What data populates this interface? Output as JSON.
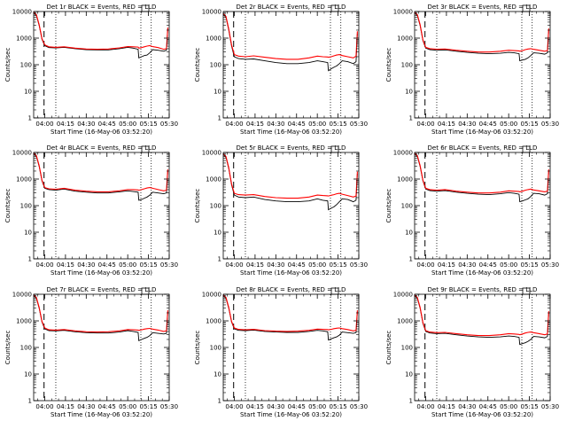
{
  "figure": {
    "xlabel": "Start Time (16-May-06 03:52:20)",
    "ylabel": "Counts/sec"
  },
  "chart_data": [
    {
      "type": "line",
      "title": "Det 1r BLACK = Events, RED = LLD",
      "xlabel": "Start Time (16-May-06 03:52:20)",
      "ylabel": "Counts/sec",
      "yscale": "log",
      "ylim": [
        1,
        10000
      ],
      "xlim_minutes": [
        0,
        98
      ],
      "x_tick_labels": [
        "04:00",
        "04:15",
        "04:30",
        "04:45",
        "05:00",
        "05:15",
        "05:30"
      ],
      "y_tick_labels": [
        "1",
        "10",
        "100",
        "1000",
        "10000"
      ],
      "x_minutes": [
        0,
        2,
        4,
        6,
        8,
        11,
        16,
        22,
        30,
        38,
        46,
        54,
        62,
        68,
        72,
        75.5,
        76,
        78,
        80,
        82,
        84,
        86,
        90,
        94,
        96,
        97
      ],
      "series": [
        {
          "name": "Events",
          "color": "#000000",
          "values": [
            9000,
            7000,
            3000,
            900,
            520,
            440,
            430,
            450,
            400,
            370,
            360,
            360,
            400,
            450,
            420,
            380,
            180,
            200,
            220,
            230,
            280,
            370,
            350,
            320,
            350,
            2200
          ]
        },
        {
          "name": "LLD",
          "color": "#ff0000",
          "values": [
            9500,
            7500,
            3200,
            950,
            560,
            470,
            450,
            470,
            420,
            390,
            380,
            390,
            430,
            480,
            470,
            460,
            420,
            440,
            470,
            500,
            520,
            480,
            440,
            380,
            400,
            2500
          ]
        }
      ]
    },
    {
      "type": "line",
      "title": "Det 2r BLACK = Events, RED = LLD",
      "xlabel": "Start Time (16-May-06 03:52:20)",
      "ylabel": "Counts/sec",
      "yscale": "log",
      "ylim": [
        1,
        10000
      ],
      "xlim_minutes": [
        0,
        98
      ],
      "x_tick_labels": [
        "04:00",
        "04:15",
        "04:30",
        "04:45",
        "05:00",
        "05:15",
        "05:30"
      ],
      "y_tick_labels": [
        "1",
        "10",
        "100",
        "1000",
        "10000"
      ],
      "x_minutes": [
        0,
        2,
        4,
        6,
        8,
        11,
        16,
        22,
        30,
        38,
        46,
        54,
        62,
        68,
        72,
        75.5,
        76,
        78,
        80,
        82,
        84,
        86,
        90,
        94,
        96,
        97
      ],
      "series": [
        {
          "name": "Events",
          "color": "#000000",
          "values": [
            8000,
            6000,
            2000,
            500,
            200,
            170,
            160,
            165,
            140,
            120,
            110,
            110,
            120,
            140,
            130,
            120,
            60,
            70,
            80,
            90,
            110,
            140,
            130,
            110,
            130,
            1500
          ]
        },
        {
          "name": "LLD",
          "color": "#ff0000",
          "values": [
            8500,
            6500,
            2200,
            550,
            240,
            210,
            200,
            215,
            190,
            170,
            160,
            160,
            180,
            210,
            200,
            195,
            190,
            200,
            215,
            230,
            240,
            220,
            200,
            180,
            210,
            1800
          ]
        }
      ]
    },
    {
      "type": "line",
      "title": "Det 3r BLACK = Events, RED = LLD",
      "xlabel": "Start Time (16-May-06 03:52:20)",
      "ylabel": "Counts/sec",
      "yscale": "log",
      "ylim": [
        1,
        10000
      ],
      "xlim_minutes": [
        0,
        98
      ],
      "x_tick_labels": [
        "04:00",
        "04:15",
        "04:30",
        "04:45",
        "05:00",
        "05:15",
        "05:30"
      ],
      "y_tick_labels": [
        "1",
        "10",
        "100",
        "1000",
        "10000"
      ],
      "x_minutes": [
        0,
        2,
        4,
        6,
        8,
        11,
        16,
        22,
        30,
        38,
        46,
        54,
        62,
        68,
        72,
        75.5,
        76,
        78,
        80,
        82,
        84,
        86,
        90,
        94,
        96,
        97
      ],
      "series": [
        {
          "name": "Events",
          "color": "#000000",
          "values": [
            9000,
            7000,
            3000,
            800,
            420,
            370,
            350,
            360,
            320,
            290,
            270,
            260,
            270,
            290,
            280,
            260,
            140,
            150,
            160,
            180,
            220,
            280,
            270,
            250,
            280,
            2000
          ]
        },
        {
          "name": "LLD",
          "color": "#ff0000",
          "values": [
            9500,
            7500,
            3200,
            850,
            450,
            400,
            380,
            390,
            350,
            320,
            300,
            300,
            320,
            350,
            340,
            330,
            320,
            340,
            370,
            390,
            400,
            380,
            350,
            320,
            340,
            2300
          ]
        }
      ]
    },
    {
      "type": "line",
      "title": "Det 4r BLACK = Events, RED = LLD",
      "xlabel": "Start Time (16-May-06 03:52:20)",
      "ylabel": "Counts/sec",
      "yscale": "log",
      "ylim": [
        1,
        10000
      ],
      "xlim_minutes": [
        0,
        98
      ],
      "x_tick_labels": [
        "04:00",
        "04:15",
        "04:30",
        "04:45",
        "05:00",
        "05:15",
        "05:30"
      ],
      "y_tick_labels": [
        "1",
        "10",
        "100",
        "1000",
        "10000"
      ],
      "x_minutes": [
        0,
        2,
        4,
        6,
        8,
        11,
        16,
        22,
        30,
        38,
        46,
        54,
        62,
        68,
        72,
        75.5,
        76,
        78,
        80,
        82,
        84,
        86,
        90,
        94,
        96,
        97
      ],
      "series": [
        {
          "name": "Events",
          "color": "#000000",
          "values": [
            9000,
            7000,
            3000,
            850,
            450,
            400,
            380,
            420,
            350,
            320,
            300,
            300,
            330,
            360,
            340,
            320,
            160,
            170,
            190,
            210,
            250,
            320,
            300,
            280,
            300,
            2000
          ]
        },
        {
          "name": "LLD",
          "color": "#ff0000",
          "values": [
            9500,
            7500,
            3200,
            900,
            480,
            430,
            410,
            450,
            380,
            350,
            330,
            330,
            360,
            400,
            400,
            390,
            380,
            400,
            430,
            460,
            480,
            450,
            400,
            360,
            380,
            2300
          ]
        }
      ]
    },
    {
      "type": "line",
      "title": "Det 5r BLACK = Events, RED = LLD",
      "xlabel": "Start Time (16-May-06 03:52:20)",
      "ylabel": "Counts/sec",
      "yscale": "log",
      "ylim": [
        1,
        10000
      ],
      "xlim_minutes": [
        0,
        98
      ],
      "x_tick_labels": [
        "04:00",
        "04:15",
        "04:30",
        "04:45",
        "05:00",
        "05:15",
        "05:30"
      ],
      "y_tick_labels": [
        "1",
        "10",
        "100",
        "1000",
        "10000"
      ],
      "x_minutes": [
        0,
        2,
        4,
        6,
        8,
        11,
        16,
        22,
        30,
        38,
        46,
        54,
        62,
        68,
        72,
        75.5,
        76,
        78,
        80,
        82,
        84,
        86,
        90,
        94,
        96,
        97
      ],
      "series": [
        {
          "name": "Events",
          "color": "#000000",
          "values": [
            8500,
            6500,
            2500,
            600,
            250,
            210,
            200,
            210,
            170,
            150,
            140,
            140,
            150,
            180,
            160,
            150,
            70,
            80,
            90,
            110,
            140,
            180,
            170,
            140,
            160,
            1600
          ]
        },
        {
          "name": "LLD",
          "color": "#ff0000",
          "values": [
            9000,
            7000,
            2700,
            650,
            290,
            260,
            250,
            260,
            220,
            200,
            190,
            190,
            210,
            250,
            240,
            235,
            230,
            245,
            260,
            280,
            290,
            270,
            240,
            210,
            230,
            1900
          ]
        }
      ]
    },
    {
      "type": "line",
      "title": "Det 6r BLACK = Events, RED = LLD",
      "xlabel": "Start Time (16-May-06 03:52:20)",
      "ylabel": "Counts/sec",
      "yscale": "log",
      "ylim": [
        1,
        10000
      ],
      "xlim_minutes": [
        0,
        98
      ],
      "x_tick_labels": [
        "04:00",
        "04:15",
        "04:30",
        "04:45",
        "05:00",
        "05:15",
        "05:30"
      ],
      "y_tick_labels": [
        "1",
        "10",
        "100",
        "1000",
        "10000"
      ],
      "x_minutes": [
        0,
        2,
        4,
        6,
        8,
        11,
        16,
        22,
        30,
        38,
        46,
        54,
        62,
        68,
        72,
        75.5,
        76,
        78,
        80,
        82,
        84,
        86,
        90,
        94,
        96,
        97
      ],
      "series": [
        {
          "name": "Events",
          "color": "#000000",
          "values": [
            9000,
            7000,
            3000,
            850,
            420,
            370,
            350,
            370,
            320,
            290,
            270,
            260,
            280,
            310,
            290,
            270,
            140,
            150,
            165,
            180,
            220,
            290,
            280,
            250,
            280,
            2000
          ]
        },
        {
          "name": "LLD",
          "color": "#ff0000",
          "values": [
            9500,
            7500,
            3200,
            900,
            450,
            400,
            380,
            400,
            350,
            320,
            300,
            300,
            320,
            360,
            350,
            340,
            330,
            350,
            380,
            400,
            420,
            390,
            360,
            330,
            350,
            2300
          ]
        }
      ]
    },
    {
      "type": "line",
      "title": "Det 7r BLACK = Events, RED = LLD",
      "xlabel": "Start Time (16-May-06 03:52:20)",
      "ylabel": "Counts/sec",
      "yscale": "log",
      "ylim": [
        1,
        10000
      ],
      "xlim_minutes": [
        0,
        98
      ],
      "x_tick_labels": [
        "04:00",
        "04:15",
        "04:30",
        "04:45",
        "05:00",
        "05:15",
        "05:30"
      ],
      "y_tick_labels": [
        "1",
        "10",
        "100",
        "1000",
        "10000"
      ],
      "x_minutes": [
        0,
        2,
        4,
        6,
        8,
        11,
        16,
        22,
        30,
        38,
        46,
        54,
        62,
        68,
        72,
        75.5,
        76,
        78,
        80,
        82,
        84,
        86,
        90,
        94,
        96,
        97
      ],
      "series": [
        {
          "name": "Events",
          "color": "#000000",
          "values": [
            9000,
            7000,
            3000,
            900,
            500,
            430,
            420,
            440,
            390,
            360,
            350,
            350,
            380,
            430,
            400,
            370,
            180,
            200,
            220,
            240,
            280,
            360,
            340,
            320,
            340,
            2200
          ]
        },
        {
          "name": "LLD",
          "color": "#ff0000",
          "values": [
            9500,
            7500,
            3200,
            950,
            540,
            460,
            450,
            470,
            420,
            390,
            380,
            390,
            420,
            470,
            460,
            450,
            440,
            460,
            490,
            510,
            520,
            490,
            450,
            400,
            420,
            2500
          ]
        }
      ]
    },
    {
      "type": "line",
      "title": "Det 8r BLACK = Events, RED = LLD",
      "xlabel": "Start Time (16-May-06 03:52:20)",
      "ylabel": "Counts/sec",
      "yscale": "log",
      "ylim": [
        1,
        10000
      ],
      "xlim_minutes": [
        0,
        98
      ],
      "x_tick_labels": [
        "04:00",
        "04:15",
        "04:30",
        "04:45",
        "05:00",
        "05:15",
        "05:30"
      ],
      "y_tick_labels": [
        "1",
        "10",
        "100",
        "1000",
        "10000"
      ],
      "x_minutes": [
        0,
        2,
        4,
        6,
        8,
        11,
        16,
        22,
        30,
        38,
        46,
        54,
        62,
        68,
        72,
        75.5,
        76,
        78,
        80,
        82,
        84,
        86,
        90,
        94,
        96,
        97
      ],
      "series": [
        {
          "name": "Events",
          "color": "#000000",
          "values": [
            9000,
            7000,
            3000,
            900,
            500,
            440,
            430,
            450,
            400,
            380,
            370,
            370,
            400,
            440,
            420,
            390,
            190,
            210,
            230,
            250,
            290,
            380,
            360,
            340,
            360,
            2200
          ]
        },
        {
          "name": "LLD",
          "color": "#ff0000",
          "values": [
            9500,
            7500,
            3200,
            950,
            540,
            480,
            460,
            480,
            430,
            410,
            400,
            410,
            440,
            490,
            480,
            470,
            460,
            480,
            510,
            530,
            540,
            510,
            470,
            420,
            440,
            2500
          ]
        }
      ]
    },
    {
      "type": "line",
      "title": "Det 9r BLACK = Events, RED = LLD",
      "xlabel": "Start Time (16-May-06 03:52:20)",
      "ylabel": "Counts/sec",
      "yscale": "log",
      "ylim": [
        1,
        10000
      ],
      "xlim_minutes": [
        0,
        98
      ],
      "x_tick_labels": [
        "04:00",
        "04:15",
        "04:30",
        "04:45",
        "05:00",
        "05:15",
        "05:30"
      ],
      "y_tick_labels": [
        "1",
        "10",
        "100",
        "1000",
        "10000"
      ],
      "x_minutes": [
        0,
        2,
        4,
        6,
        8,
        11,
        16,
        22,
        30,
        38,
        46,
        54,
        62,
        68,
        72,
        75.5,
        76,
        78,
        80,
        82,
        84,
        86,
        90,
        94,
        96,
        97
      ],
      "series": [
        {
          "name": "Events",
          "color": "#000000",
          "values": [
            9000,
            7000,
            3000,
            800,
            400,
            350,
            330,
            340,
            300,
            270,
            250,
            240,
            250,
            270,
            260,
            240,
            130,
            140,
            150,
            170,
            200,
            260,
            250,
            230,
            260,
            2000
          ]
        },
        {
          "name": "LLD",
          "color": "#ff0000",
          "values": [
            9500,
            7500,
            3200,
            850,
            430,
            380,
            360,
            370,
            330,
            300,
            280,
            280,
            300,
            330,
            320,
            310,
            300,
            320,
            350,
            370,
            380,
            360,
            330,
            300,
            320,
            2300
          ]
        }
      ]
    }
  ]
}
